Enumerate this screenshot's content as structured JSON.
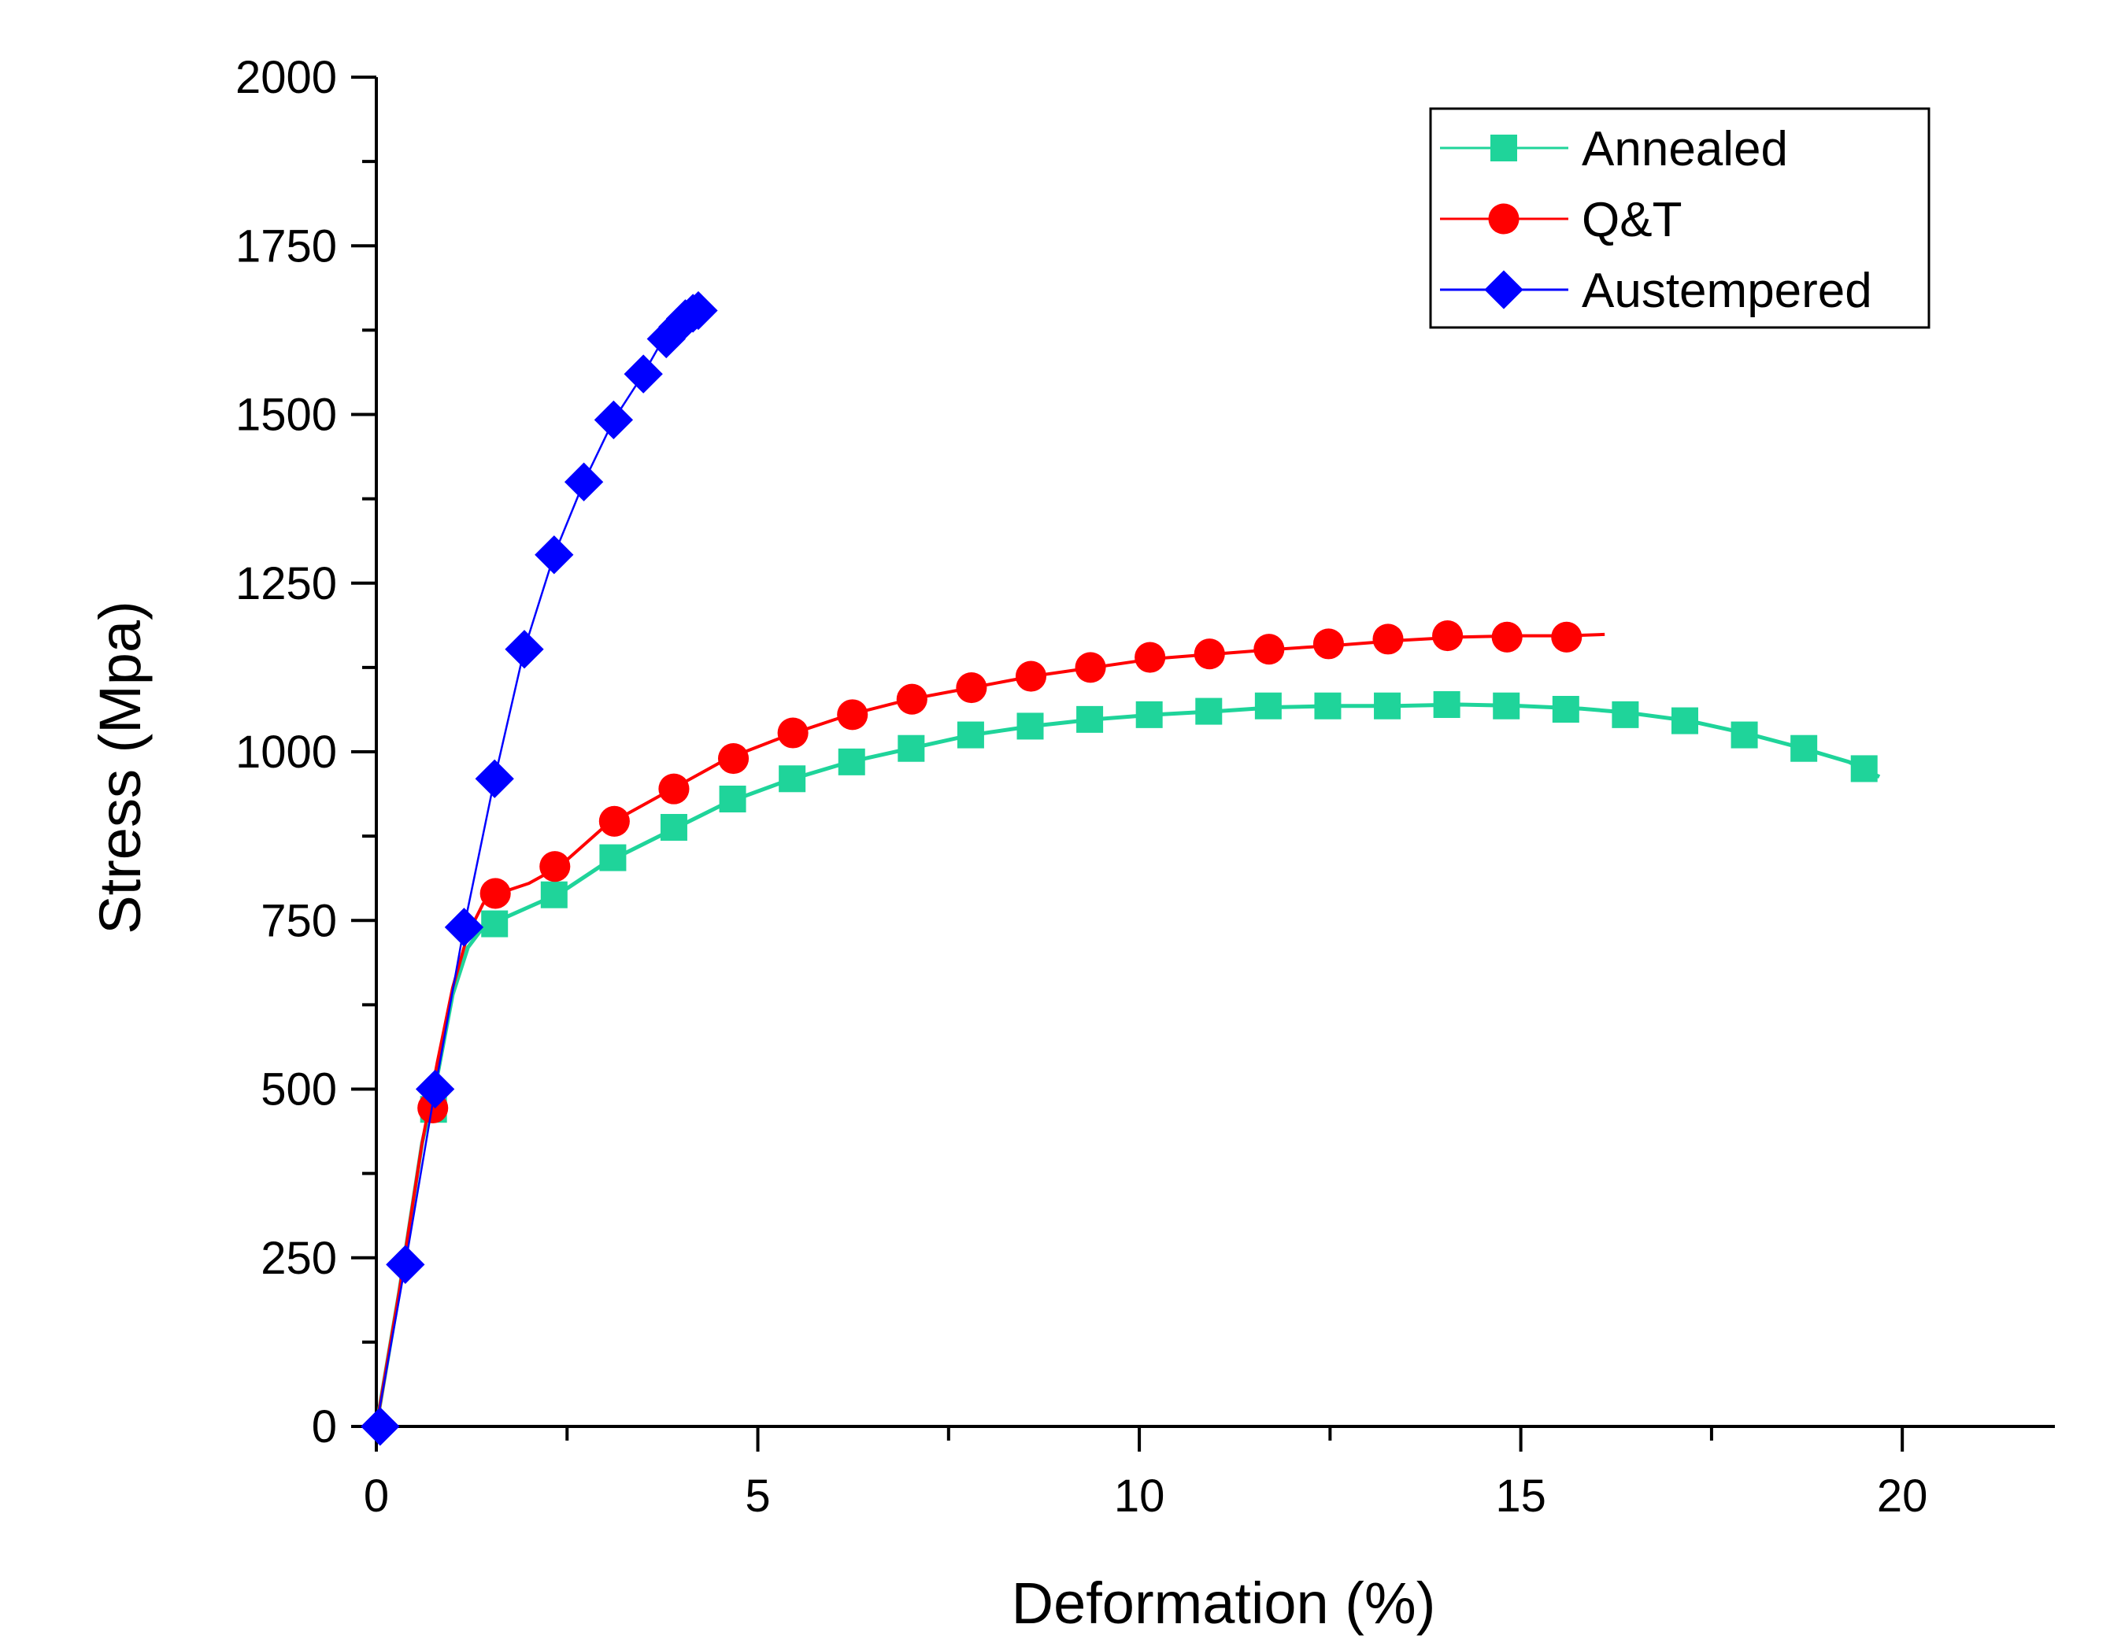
{
  "chart_data": {
    "type": "line",
    "title": "",
    "xlabel": "Deformation (%)",
    "ylabel": "Stress (Mpa)",
    "xlim": [
      0,
      22
    ],
    "ylim": [
      0,
      2000
    ],
    "x_ticks": [
      0,
      5,
      10,
      15,
      20
    ],
    "y_ticks": [
      0,
      250,
      500,
      750,
      1000,
      1250,
      1500,
      1750,
      2000
    ],
    "x_tick_labels": [
      "0",
      "5",
      "10",
      "15",
      "20"
    ],
    "y_tick_labels": [
      "0",
      "250",
      "500",
      "750",
      "1000",
      "1250",
      "1500",
      "1750",
      "2000"
    ],
    "grid": false,
    "legend_position": "top-right",
    "series": [
      {
        "name": "Annealed",
        "color": "#1fd49a",
        "marker": "square",
        "line": [
          [
            0,
            0
          ],
          [
            0.3,
            200
          ],
          [
            0.6,
            420
          ],
          [
            0.8,
            520
          ],
          [
            1.0,
            640
          ],
          [
            1.2,
            710
          ],
          [
            1.4,
            740
          ],
          [
            1.6,
            750
          ],
          [
            2.0,
            770
          ],
          [
            2.4,
            790
          ],
          [
            3.0,
            835
          ],
          [
            3.8,
            880
          ],
          [
            4.6,
            925
          ],
          [
            5.4,
            958
          ],
          [
            6.2,
            985
          ],
          [
            7.0,
            1005
          ],
          [
            7.8,
            1025
          ],
          [
            8.6,
            1038
          ],
          [
            9.4,
            1048
          ],
          [
            10.2,
            1055
          ],
          [
            11.0,
            1060
          ],
          [
            11.8,
            1066
          ],
          [
            12.6,
            1068
          ],
          [
            13.4,
            1068
          ],
          [
            14.2,
            1070
          ],
          [
            15.0,
            1068
          ],
          [
            15.8,
            1064
          ],
          [
            16.4,
            1058
          ],
          [
            17.2,
            1046
          ],
          [
            18.0,
            1026
          ],
          [
            18.7,
            1005
          ],
          [
            19.3,
            985
          ],
          [
            19.7,
            963
          ]
        ],
        "markers": [
          [
            0.75,
            470
          ],
          [
            1.55,
            745
          ],
          [
            2.33,
            788
          ],
          [
            3.1,
            843
          ],
          [
            3.9,
            888
          ],
          [
            4.67,
            930
          ],
          [
            5.45,
            960
          ],
          [
            6.23,
            985
          ],
          [
            7.01,
            1005
          ],
          [
            7.79,
            1025
          ],
          [
            8.57,
            1038
          ],
          [
            9.35,
            1048
          ],
          [
            10.13,
            1055
          ],
          [
            10.91,
            1060
          ],
          [
            11.69,
            1068
          ],
          [
            12.47,
            1068
          ],
          [
            13.25,
            1068
          ],
          [
            14.03,
            1070
          ],
          [
            14.81,
            1068
          ],
          [
            15.59,
            1063
          ],
          [
            16.37,
            1055
          ],
          [
            17.15,
            1046
          ],
          [
            17.93,
            1025
          ],
          [
            18.71,
            1005
          ],
          [
            19.5,
            975
          ]
        ]
      },
      {
        "name": "Q&T",
        "color": "#ff0000",
        "marker": "circle",
        "line": [
          [
            0,
            0
          ],
          [
            0.3,
            200
          ],
          [
            0.6,
            420
          ],
          [
            0.8,
            540
          ],
          [
            1.0,
            650
          ],
          [
            1.2,
            730
          ],
          [
            1.4,
            775
          ],
          [
            1.6,
            790
          ],
          [
            2.0,
            805
          ],
          [
            2.4,
            830
          ],
          [
            3.0,
            890
          ],
          [
            3.8,
            940
          ],
          [
            4.6,
            990
          ],
          [
            5.4,
            1025
          ],
          [
            6.2,
            1055
          ],
          [
            7.0,
            1078
          ],
          [
            7.8,
            1095
          ],
          [
            8.6,
            1112
          ],
          [
            9.4,
            1125
          ],
          [
            10.2,
            1138
          ],
          [
            11.0,
            1145
          ],
          [
            11.8,
            1152
          ],
          [
            12.6,
            1158
          ],
          [
            13.4,
            1165
          ],
          [
            14.2,
            1170
          ],
          [
            15.0,
            1172
          ],
          [
            15.6,
            1172
          ],
          [
            16.1,
            1174
          ]
        ],
        "markers": [
          [
            0.74,
            472
          ],
          [
            1.56,
            790
          ],
          [
            2.34,
            830
          ],
          [
            3.12,
            897
          ],
          [
            3.9,
            945
          ],
          [
            4.68,
            990
          ],
          [
            5.46,
            1028
          ],
          [
            6.24,
            1055
          ],
          [
            7.02,
            1078
          ],
          [
            7.8,
            1095
          ],
          [
            8.58,
            1112
          ],
          [
            9.36,
            1125
          ],
          [
            10.14,
            1140
          ],
          [
            10.92,
            1145
          ],
          [
            11.7,
            1152
          ],
          [
            12.48,
            1160
          ],
          [
            13.26,
            1167
          ],
          [
            14.04,
            1172
          ],
          [
            14.82,
            1170
          ],
          [
            15.6,
            1170
          ]
        ]
      },
      {
        "name": "Austempered",
        "color": "#0000ff",
        "marker": "diamond",
        "line": [
          [
            0,
            0
          ],
          [
            0.38,
            240
          ],
          [
            0.77,
            500
          ],
          [
            1.15,
            740
          ],
          [
            1.55,
            960
          ],
          [
            1.94,
            1152
          ],
          [
            2.33,
            1292
          ],
          [
            2.72,
            1400
          ],
          [
            3.11,
            1492
          ],
          [
            3.5,
            1560
          ],
          [
            3.75,
            1610
          ],
          [
            3.9,
            1628
          ],
          [
            4.0,
            1640
          ],
          [
            4.1,
            1648
          ],
          [
            4.2,
            1652
          ]
        ],
        "markers": [
          [
            0.05,
            0
          ],
          [
            0.38,
            240
          ],
          [
            0.77,
            500
          ],
          [
            1.15,
            740
          ],
          [
            1.55,
            960
          ],
          [
            1.94,
            1152
          ],
          [
            2.33,
            1292
          ],
          [
            2.72,
            1400
          ],
          [
            3.11,
            1492
          ],
          [
            3.5,
            1560
          ],
          [
            3.8,
            1612
          ],
          [
            3.95,
            1630
          ],
          [
            4.05,
            1642
          ],
          [
            4.15,
            1650
          ],
          [
            4.22,
            1654
          ]
        ]
      }
    ]
  }
}
